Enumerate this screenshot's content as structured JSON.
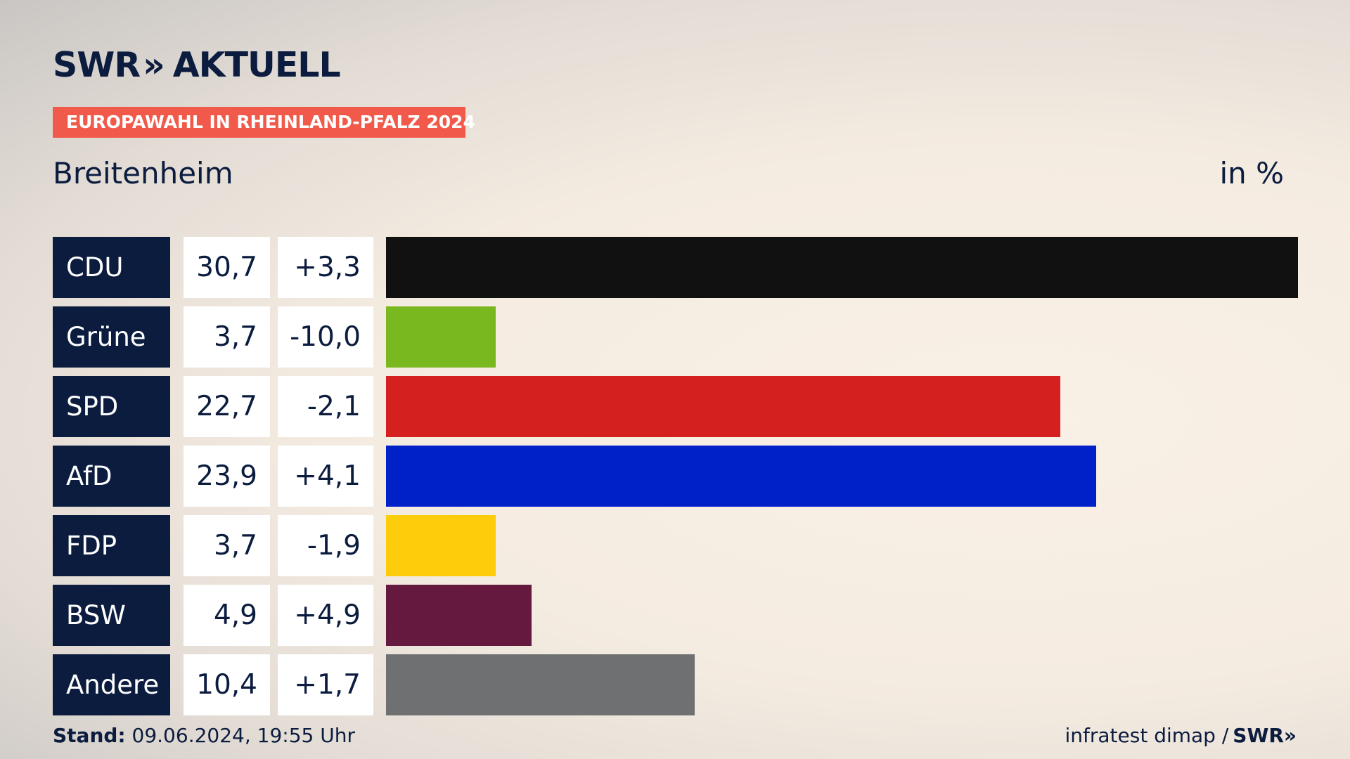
{
  "logo": {
    "brand": "SWR",
    "chevrons": "»",
    "product": "AKTUELL"
  },
  "tag": "EUROPAWAHL IN RHEINLAND-PFALZ 2024",
  "place": "Breitenheim",
  "unit": "in %",
  "footer": {
    "stand_label": "Stand:",
    "stand_value": "09.06.2024, 19:55 Uhr",
    "source": "infratest dimap /",
    "source_brand": "SWR»"
  },
  "colors": {
    "CDU": "#111111",
    "Grüne": "#7ab81f",
    "SPD": "#d52020",
    "AfD": "#0021c8",
    "FDP": "#fdcc0a",
    "BSW": "#66193e",
    "Andere": "#6f7071"
  },
  "chart_data": {
    "type": "bar",
    "orientation": "horizontal",
    "categories": [
      "CDU",
      "Grüne",
      "SPD",
      "AfD",
      "FDP",
      "BSW",
      "Andere"
    ],
    "values": [
      30.7,
      3.7,
      22.7,
      23.9,
      3.7,
      4.9,
      10.4
    ],
    "value_labels": [
      "30,7",
      "3,7",
      "22,7",
      "23,9",
      "3,7",
      "4,9",
      "10,4"
    ],
    "changes": [
      3.3,
      -10.0,
      -2.1,
      4.1,
      -1.9,
      4.9,
      1.7
    ],
    "change_labels": [
      "+3,3",
      "-10,0",
      "-2,1",
      "+4,1",
      "-1,9",
      "+4,9",
      "+1,7"
    ],
    "xlim": [
      0,
      30.7
    ],
    "grid": false
  }
}
